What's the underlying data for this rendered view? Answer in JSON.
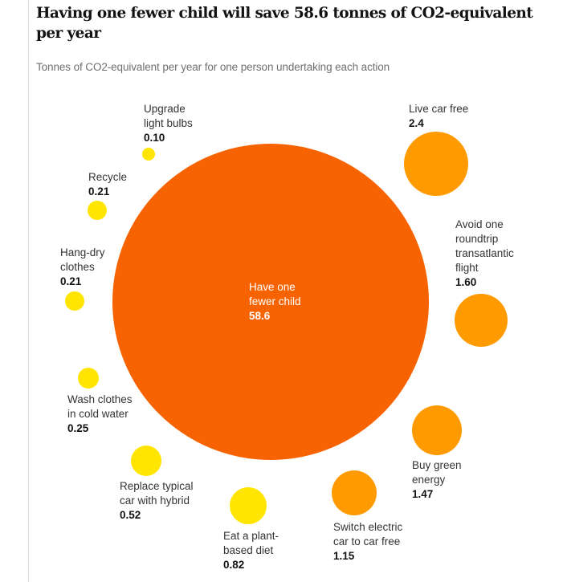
{
  "header": {
    "title": "Having one fewer child will save 58.6 tonnes of CO2-equivalent per year",
    "subtitle": "Tonnes of CO2-equivalent per year for one person undertaking each action"
  },
  "colors": {
    "high": "#f76300",
    "medium": "#ff9b00",
    "low": "#ffe500",
    "rule": "#dcdcdc"
  },
  "chart_data": {
    "type": "bubble",
    "title": "Having one fewer child will save 58.6 tonnes of CO2-equivalent per year",
    "subtitle": "Tonnes of CO2-equivalent per year for one person undertaking each action",
    "unit": "tonnes CO2-equivalent per year",
    "items": [
      {
        "id": "fewer-child",
        "label_lines": [
          "Have one",
          "fewer child"
        ],
        "value_text": "58.6",
        "value": 58.6,
        "category": "high"
      },
      {
        "id": "car-free",
        "label_lines": [
          "Live car free"
        ],
        "value_text": "2.4",
        "value": 2.4,
        "category": "medium"
      },
      {
        "id": "transatlantic-flight",
        "label_lines": [
          "Avoid one",
          "roundtrip",
          "transatlantic",
          "flight"
        ],
        "value_text": "1.60",
        "value": 1.6,
        "category": "medium"
      },
      {
        "id": "green-energy",
        "label_lines": [
          "Buy green",
          "energy"
        ],
        "value_text": "1.47",
        "value": 1.47,
        "category": "medium"
      },
      {
        "id": "electric-to-car-free",
        "label_lines": [
          "Switch electric",
          "car to car free"
        ],
        "value_text": "1.15",
        "value": 1.15,
        "category": "medium"
      },
      {
        "id": "plant-based",
        "label_lines": [
          "Eat a plant-",
          "based diet"
        ],
        "value_text": "0.82",
        "value": 0.82,
        "category": "low"
      },
      {
        "id": "hybrid-car",
        "label_lines": [
          "Replace typical",
          "car with hybrid"
        ],
        "value_text": "0.52",
        "value": 0.52,
        "category": "low"
      },
      {
        "id": "cold-wash",
        "label_lines": [
          "Wash clothes",
          "in cold water"
        ],
        "value_text": "0.25",
        "value": 0.25,
        "category": "low"
      },
      {
        "id": "hang-dry",
        "label_lines": [
          "Hang-dry",
          "clothes"
        ],
        "value_text": "0.21",
        "value": 0.21,
        "category": "low"
      },
      {
        "id": "recycle",
        "label_lines": [
          "Recycle"
        ],
        "value_text": "0.21",
        "value": 0.21,
        "category": "low"
      },
      {
        "id": "light-bulbs",
        "label_lines": [
          "Upgrade",
          "light bulbs"
        ],
        "value_text": "0.10",
        "value": 0.1,
        "category": "low"
      }
    ]
  }
}
